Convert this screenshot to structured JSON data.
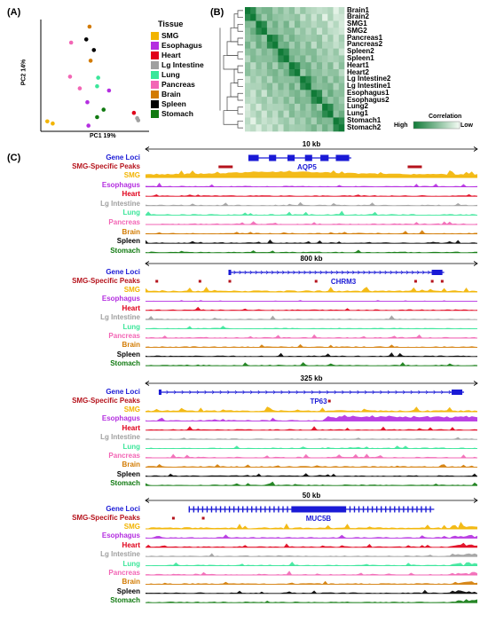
{
  "panel_labels": {
    "a": "(A)",
    "b": "(B)",
    "c": "(C)"
  },
  "pca": {
    "xlabel": "PC1 19%",
    "ylabel": "PC2 14%",
    "legend_title": "Tissue",
    "tissues": [
      {
        "name": "SMG",
        "color": "#f2b400"
      },
      {
        "name": "Esophagus",
        "color": "#b42ee0"
      },
      {
        "name": "Heart",
        "color": "#e0001a"
      },
      {
        "name": "Lg Intestine",
        "color": "#a0a0a0"
      },
      {
        "name": "Lung",
        "color": "#3be69a"
      },
      {
        "name": "Pancreas",
        "color": "#f266b5"
      },
      {
        "name": "Brain",
        "color": "#d27a00"
      },
      {
        "name": "Spleen",
        "color": "#000000"
      },
      {
        "name": "Stomach",
        "color": "#117a11"
      }
    ]
  },
  "chart_data": [
    {
      "type": "scatter",
      "xlabel": "PC1 19%",
      "ylabel": "PC2 14%",
      "points": [
        {
          "tissue": "Brain",
          "x": 0.45,
          "y": 0.95
        },
        {
          "tissue": "Spleen",
          "x": 0.42,
          "y": 0.83
        },
        {
          "tissue": "Pancreas",
          "x": 0.28,
          "y": 0.8
        },
        {
          "tissue": "Spleen",
          "x": 0.49,
          "y": 0.73
        },
        {
          "tissue": "Brain",
          "x": 0.46,
          "y": 0.63
        },
        {
          "tissue": "Pancreas",
          "x": 0.27,
          "y": 0.48
        },
        {
          "tissue": "Lung",
          "x": 0.53,
          "y": 0.47
        },
        {
          "tissue": "Lung",
          "x": 0.52,
          "y": 0.39
        },
        {
          "tissue": "Pancreas",
          "x": 0.36,
          "y": 0.37
        },
        {
          "tissue": "Esophagus",
          "x": 0.63,
          "y": 0.35
        },
        {
          "tissue": "Esophagus",
          "x": 0.43,
          "y": 0.24
        },
        {
          "tissue": "Stomach",
          "x": 0.58,
          "y": 0.17
        },
        {
          "tissue": "Heart",
          "x": 0.86,
          "y": 0.14
        },
        {
          "tissue": "Stomach",
          "x": 0.52,
          "y": 0.1
        },
        {
          "tissue": "Lg Intestine",
          "x": 0.89,
          "y": 0.09
        },
        {
          "tissue": "Lg Intestine",
          "x": 0.9,
          "y": 0.07
        },
        {
          "tissue": "SMG",
          "x": 0.06,
          "y": 0.06
        },
        {
          "tissue": "SMG",
          "x": 0.11,
          "y": 0.04
        },
        {
          "tissue": "Esophagus",
          "x": 0.44,
          "y": 0.02
        }
      ]
    },
    {
      "type": "heatmap",
      "rows": [
        "Brain1",
        "Brain2",
        "SMG1",
        "SMG2",
        "Pancreas1",
        "Pancreas2",
        "Spleen2",
        "Spleen1",
        "Heart1",
        "Heart2",
        "Lg Intestine2",
        "Lg Intestine1",
        "Esophagus1",
        "Esophagus2",
        "Lung2",
        "Lung1",
        "Stomach1",
        "Stomach2"
      ],
      "legend_title": "Correlation",
      "legend_high": "High",
      "legend_low": "Low"
    }
  ],
  "tracks": {
    "gene_loci_label": "Gene Loci",
    "peaks_label": "SMG-Specific Peaks",
    "tissue_order": [
      "SMG",
      "Esophagus",
      "Heart",
      "Lg Intestine",
      "Lung",
      "Pancreas",
      "Brain",
      "Spleen",
      "Stomach"
    ],
    "loci": [
      {
        "gene": "AQP5",
        "scale": "10 kb",
        "peaks": [
          0.22,
          0.79
        ]
      },
      {
        "gene": "CHRM3",
        "scale": "800 kb",
        "peaks": [
          0.03,
          0.16,
          0.25,
          0.51,
          0.81,
          0.86,
          0.89
        ]
      },
      {
        "gene": "TP63",
        "scale": "325 kb",
        "peaks": [
          0.55
        ]
      },
      {
        "gene": "MUC5B",
        "scale": "50 kb",
        "peaks": [
          0.08,
          0.17
        ]
      }
    ]
  }
}
